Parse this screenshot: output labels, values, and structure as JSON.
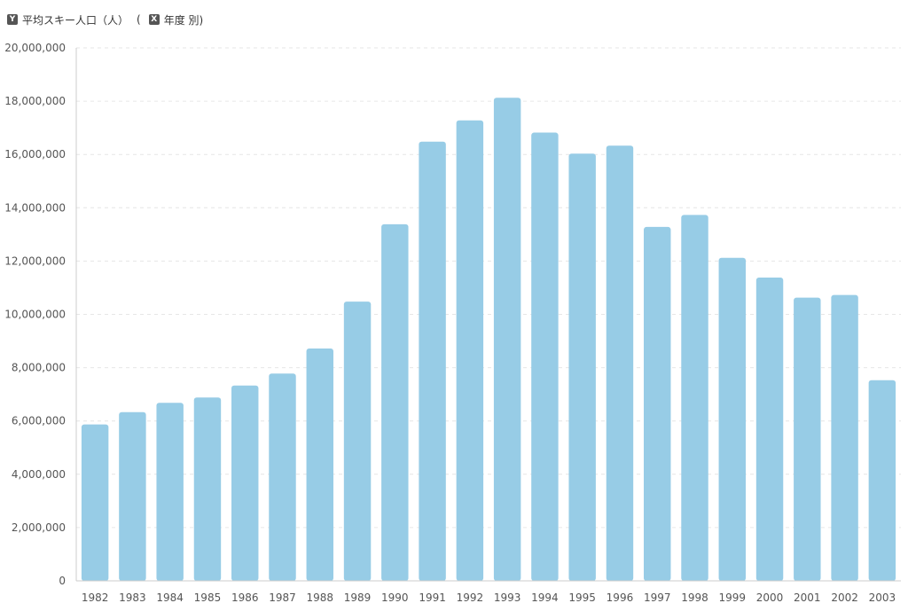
{
  "header": {
    "y_badge": "Y",
    "y_label": "平均スキー人口（人）",
    "open_paren": "(",
    "x_badge": "X",
    "x_label": "年度 別)"
  },
  "colors": {
    "bar": "#97cce6",
    "grid": "#e6e6e6",
    "axis": "#cccccc"
  },
  "chart_data": {
    "type": "bar",
    "categories": [
      "1982",
      "1983",
      "1984",
      "1985",
      "1986",
      "1987",
      "1988",
      "1989",
      "1990",
      "1991",
      "1992",
      "1993",
      "1994",
      "1995",
      "1996",
      "1997",
      "1998",
      "1999",
      "2000",
      "2001",
      "2002",
      "2003"
    ],
    "values": [
      5870000,
      6330000,
      6680000,
      6880000,
      7330000,
      7780000,
      8720000,
      10480000,
      13380000,
      16480000,
      17280000,
      18130000,
      16820000,
      16030000,
      16330000,
      13280000,
      13730000,
      12120000,
      11380000,
      10630000,
      10730000,
      7530000
    ],
    "ylabel": "平均スキー人口（人）",
    "xlabel": "年度",
    "ylim": [
      0,
      20000000
    ],
    "yticks": [
      0,
      2000000,
      4000000,
      6000000,
      8000000,
      10000000,
      12000000,
      14000000,
      16000000,
      18000000,
      20000000
    ],
    "grid": true
  }
}
